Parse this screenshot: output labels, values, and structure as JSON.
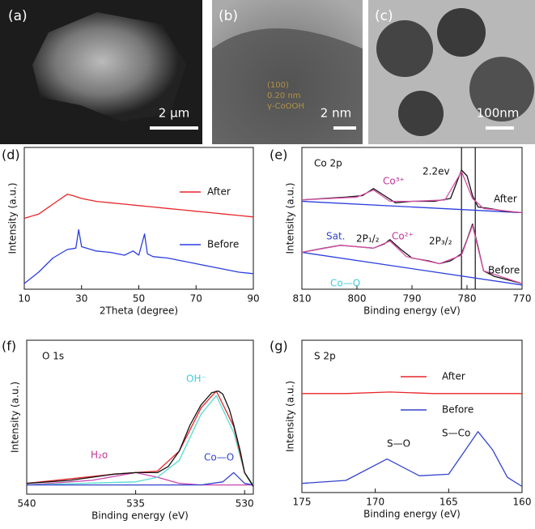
{
  "images": [
    {
      "label": "(a)",
      "scale": "2 μm"
    },
    {
      "label": "(b)",
      "scale": "2 nm",
      "annotation": [
        "(100)",
        "0.20 nm",
        "γ-CoOOH"
      ]
    },
    {
      "label": "(c)",
      "scale": "100nm"
    }
  ],
  "chart_data": [
    {
      "type": "line",
      "panel": "(d)",
      "xlabel": "2Theta (degree)",
      "ylabel": "Intensity (a.u.)",
      "xlim": [
        10,
        90
      ],
      "xticks": [
        10,
        30,
        50,
        70,
        90
      ],
      "ylim": [
        0,
        100
      ],
      "legend": "right",
      "series": [
        {
          "name": "After",
          "color": "#e8262a",
          "x": [
            10,
            15,
            20,
            25,
            27,
            30,
            35,
            40,
            45,
            50,
            55,
            60,
            65,
            70,
            75,
            80,
            85,
            90
          ],
          "values": [
            50,
            53,
            60,
            67,
            66,
            64,
            62,
            61,
            60,
            59,
            58,
            57,
            56,
            55,
            54,
            53,
            52,
            51
          ]
        },
        {
          "name": "Before",
          "color": "#2b3ee0",
          "x": [
            10,
            15,
            20,
            25,
            28,
            29,
            30,
            35,
            40,
            45,
            48,
            50,
            52,
            53,
            55,
            60,
            65,
            70,
            75,
            80,
            85,
            90
          ],
          "values": [
            4,
            12,
            22,
            28,
            29,
            42,
            30,
            27,
            26,
            24,
            27,
            24,
            39,
            25,
            23,
            22,
            20,
            18,
            16,
            14,
            12,
            11
          ]
        }
      ]
    },
    {
      "type": "line",
      "panel": "(e)",
      "xlabel": "Binding energy (eV)",
      "ylabel": "Intensity (a.u.)",
      "xlim": [
        810,
        770
      ],
      "xticks": [
        810,
        800,
        790,
        780,
        770
      ],
      "ylim": [
        0,
        100
      ],
      "vlines": [
        781,
        778.5
      ],
      "annotations": [
        "Co 2p",
        "2.2ev",
        "Co³⁺",
        "After",
        "Sat.",
        "2P₁/₂",
        "Co²⁺",
        "2P₃/₂",
        "Co—O",
        "Before"
      ],
      "series": [
        {
          "color": "#2b3ee0",
          "x": [
            810,
            770
          ],
          "values": [
            62,
            54
          ]
        },
        {
          "color": "#111111",
          "x": [
            810,
            806,
            802,
            799,
            797,
            795,
            793,
            790,
            786,
            783,
            781,
            780,
            779,
            778,
            776,
            773,
            770
          ],
          "values": [
            63,
            64,
            65,
            66,
            71,
            66,
            61,
            62,
            62,
            64,
            84,
            80,
            66,
            58,
            57,
            55,
            54
          ]
        },
        {
          "color": "#d94fa6",
          "x": [
            810,
            800,
            797,
            794,
            790,
            784,
            781,
            779,
            777,
            770
          ],
          "values": [
            63,
            65,
            70,
            62,
            62,
            63,
            83,
            64,
            57,
            54
          ]
        },
        {
          "color": "#2b3ee0",
          "x": [
            810,
            770
          ],
          "values": [
            26,
            3
          ]
        },
        {
          "color": "#111111",
          "x": [
            810,
            806,
            803,
            800,
            797,
            795,
            794,
            792,
            790,
            787,
            785,
            783,
            781,
            780,
            779,
            778,
            777,
            775,
            772,
            770
          ],
          "values": [
            26,
            29,
            31,
            30,
            29,
            32,
            35,
            28,
            22,
            20,
            18,
            20,
            25,
            35,
            46,
            30,
            13,
            9,
            6,
            4
          ]
        },
        {
          "color": "#d94fa6",
          "x": [
            810,
            803,
            797,
            794,
            791,
            785,
            781,
            779,
            777,
            770
          ],
          "values": [
            26,
            31,
            29,
            34,
            23,
            18,
            24,
            45,
            13,
            4
          ]
        }
      ]
    },
    {
      "type": "line",
      "panel": "(f)",
      "xlabel": "Binding energy (eV)",
      "ylabel": "Intensity (a.u.)",
      "xlim": [
        540,
        529.6
      ],
      "xticks": [
        540,
        535,
        530
      ],
      "ylim": [
        0,
        100
      ],
      "annotations": [
        "O 1s",
        "OH⁻",
        "H₂o",
        "Co—O"
      ],
      "series": [
        {
          "color": "#cc44b0",
          "x": [
            540,
            537,
            535,
            534,
            533,
            532,
            531,
            529.6
          ],
          "values": [
            6,
            9,
            14,
            11,
            7,
            6,
            6,
            6
          ]
        },
        {
          "color": "#55ddd0",
          "x": [
            540,
            535,
            534,
            533,
            532,
            531.3,
            530.5,
            530,
            529.6
          ],
          "values": [
            6,
            8,
            11,
            22,
            52,
            64,
            40,
            14,
            6
          ]
        },
        {
          "color": "#3344cc",
          "x": [
            540,
            532,
            531,
            530.5,
            530,
            529.6
          ],
          "values": [
            6,
            6,
            8,
            14,
            7,
            6
          ]
        },
        {
          "color": "#e8262a",
          "x": [
            540,
            536,
            535,
            534,
            533,
            532,
            531.3,
            530.5,
            530,
            529.6
          ],
          "values": [
            7,
            13,
            14,
            15,
            28,
            56,
            67,
            44,
            14,
            5
          ]
        },
        {
          "color": "#111111",
          "x": [
            540,
            538,
            537,
            536,
            535,
            534,
            533.5,
            533,
            532.5,
            532,
            531.5,
            531.2,
            531,
            530.7,
            530.5,
            530.2,
            530,
            529.6
          ],
          "values": [
            7,
            9,
            11,
            13,
            14,
            14,
            18,
            28,
            45,
            58,
            66,
            67,
            65,
            55,
            45,
            28,
            14,
            5
          ]
        }
      ]
    },
    {
      "type": "line",
      "panel": "(g)",
      "xlabel": "Binding energy (eV)",
      "ylabel": "Intensity (a.u.)",
      "xlim": [
        175,
        160
      ],
      "xticks": [
        175,
        170,
        165,
        160
      ],
      "ylim": [
        0,
        100
      ],
      "legend": "right",
      "annotations": [
        "S 2p",
        "S—O",
        "S—Co"
      ],
      "series": [
        {
          "name": "After",
          "color": "#e8262a",
          "x": [
            175,
            172,
            169,
            166,
            163,
            160
          ],
          "values": [
            65,
            65,
            66,
            65,
            65,
            65
          ]
        },
        {
          "name": "Before",
          "color": "#3344cc",
          "x": [
            175,
            172,
            169.2,
            167,
            165,
            164,
            163,
            162,
            161,
            160
          ],
          "values": [
            6,
            8,
            22,
            11,
            12,
            26,
            40,
            28,
            10,
            4
          ]
        }
      ]
    }
  ]
}
